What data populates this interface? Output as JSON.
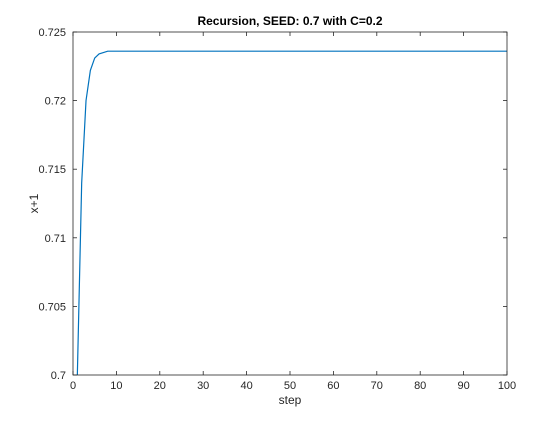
{
  "chart_data": {
    "type": "line",
    "title": "Recursion, SEED: 0.7 with C=0.2",
    "xlabel": "step",
    "ylabel": "x+1",
    "xlim": [
      0,
      100
    ],
    "ylim": [
      0.7,
      0.725
    ],
    "grid": false,
    "x_ticks": [
      0,
      10,
      20,
      30,
      40,
      50,
      60,
      70,
      80,
      90,
      100
    ],
    "x_tick_labels": [
      "0",
      "10",
      "20",
      "30",
      "40",
      "50",
      "60",
      "70",
      "80",
      "90",
      "100"
    ],
    "y_ticks": [
      0.7,
      0.705,
      0.71,
      0.715,
      0.72,
      0.725
    ],
    "y_tick_labels": [
      "0.7",
      "0.705",
      "0.71",
      "0.715",
      "0.72",
      "0.725"
    ],
    "series": [
      {
        "color": "#0072bd",
        "x": [
          1,
          2,
          3,
          4,
          5,
          6,
          7,
          8,
          9,
          10,
          11,
          12,
          13,
          14,
          15,
          16,
          17,
          18,
          19,
          20,
          30,
          40,
          50,
          60,
          70,
          80,
          90,
          100
        ],
        "y": [
          0.7,
          0.714,
          0.72,
          0.7222,
          0.7231,
          0.7234,
          0.7235,
          0.7236,
          0.7236,
          0.7236,
          0.7236,
          0.7236,
          0.7236,
          0.7236,
          0.7236,
          0.7236,
          0.7236,
          0.7236,
          0.7236,
          0.7236,
          0.7236,
          0.7236,
          0.7236,
          0.7236,
          0.7236,
          0.7236,
          0.7236,
          0.7236
        ]
      }
    ]
  }
}
